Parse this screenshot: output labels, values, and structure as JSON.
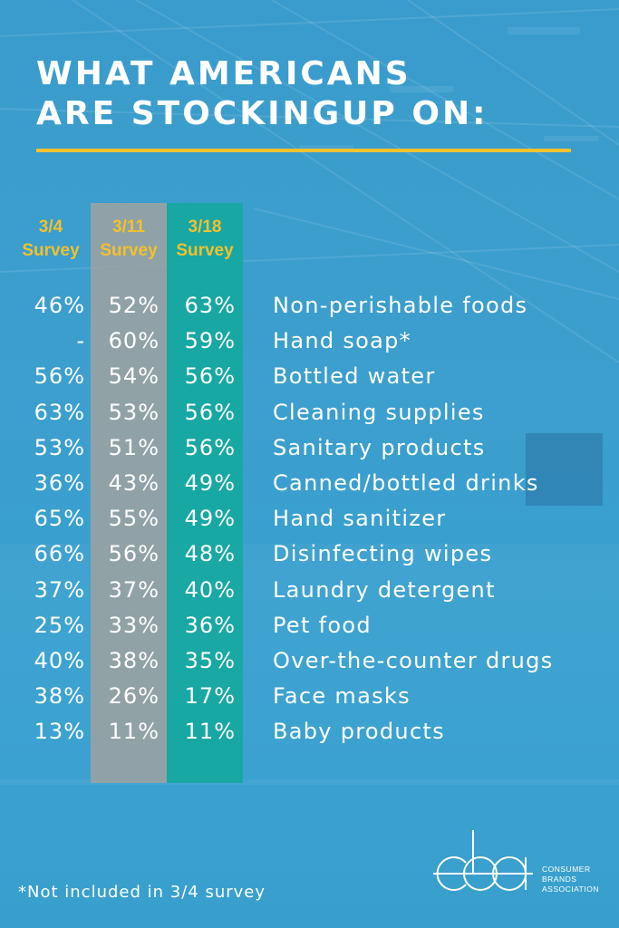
{
  "title": {
    "line1": "WHAT AMERICANS",
    "line2": "ARE STOCKINGUP ON:"
  },
  "columns": [
    {
      "date": "3/4",
      "label": "Survey"
    },
    {
      "date": "3/11",
      "label": "Survey"
    },
    {
      "date": "3/18",
      "label": "Survey"
    }
  ],
  "rows": [
    {
      "item": "Non-perishable foods",
      "s1": "46%",
      "s2": "52%",
      "s3": "63%"
    },
    {
      "item": "Hand soap*",
      "s1": "-",
      "s2": "60%",
      "s3": "59%"
    },
    {
      "item": "Bottled water",
      "s1": "56%",
      "s2": "54%",
      "s3": "56%"
    },
    {
      "item": "Cleaning supplies",
      "s1": "63%",
      "s2": "53%",
      "s3": "56%"
    },
    {
      "item": "Sanitary products",
      "s1": "53%",
      "s2": "51%",
      "s3": "56%"
    },
    {
      "item": "Canned/bottled drinks",
      "s1": "36%",
      "s2": "43%",
      "s3": "49%"
    },
    {
      "item": "Hand sanitizer",
      "s1": "65%",
      "s2": "55%",
      "s3": "49%"
    },
    {
      "item": "Disinfecting wipes",
      "s1": "66%",
      "s2": "56%",
      "s3": "48%"
    },
    {
      "item": "Laundry detergent",
      "s1": "37%",
      "s2": "37%",
      "s3": "40%"
    },
    {
      "item": "Pet food",
      "s1": "25%",
      "s2": "33%",
      "s3": "36%"
    },
    {
      "item": "Over-the-counter drugs",
      "s1": "40%",
      "s2": "38%",
      "s3": "35%"
    },
    {
      "item": "Face masks",
      "s1": "38%",
      "s2": "26%",
      "s3": "17%"
    },
    {
      "item": "Baby products",
      "s1": "13%",
      "s2": "11%",
      "s3": "11%"
    }
  ],
  "footnote": "*Not included in 3/4 survey",
  "logo": {
    "mark": "cba",
    "line1": "CONSUMER",
    "line2": "BRANDS",
    "line3": "ASSOCIATION"
  },
  "colors": {
    "background": "#3a9ccc",
    "accent_yellow": "#f2c12e",
    "column_gray": "#a0a2a0",
    "column_teal": "#16a8a0",
    "text": "#ffffff"
  }
}
